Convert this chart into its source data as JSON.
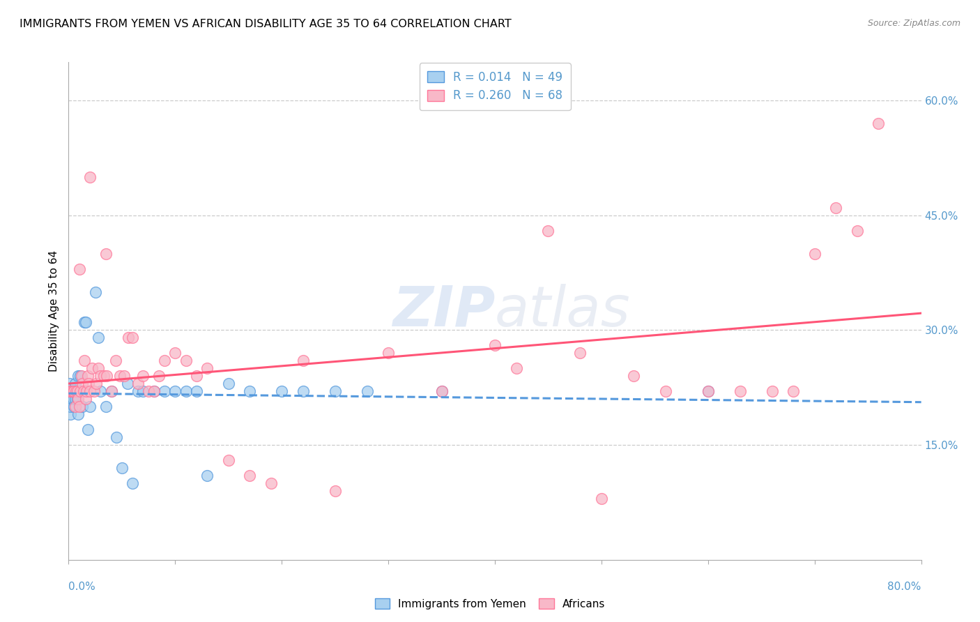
{
  "title": "IMMIGRANTS FROM YEMEN VS AFRICAN DISABILITY AGE 35 TO 64 CORRELATION CHART",
  "source": "Source: ZipAtlas.com",
  "ylabel": "Disability Age 35 to 64",
  "ylabel_right_ticks": [
    "60.0%",
    "45.0%",
    "30.0%",
    "15.0%"
  ],
  "ylabel_right_vals": [
    0.6,
    0.45,
    0.3,
    0.15
  ],
  "watermark_zip": "ZIP",
  "watermark_atlas": "atlas",
  "legend_r1": "R = 0.014",
  "legend_n1": "N = 49",
  "legend_r2": "R = 0.260",
  "legend_n2": "N = 68",
  "series1_face_color": "#A8D0F0",
  "series2_face_color": "#F8B8C8",
  "series1_edge_color": "#5599DD",
  "series2_edge_color": "#FF7799",
  "line1_color": "#5599DD",
  "line2_color": "#FF5577",
  "xlim": [
    0.0,
    0.8
  ],
  "ylim": [
    0.0,
    0.65
  ],
  "series1_x": [
    0.001,
    0.002,
    0.002,
    0.003,
    0.003,
    0.004,
    0.005,
    0.005,
    0.006,
    0.006,
    0.007,
    0.007,
    0.008,
    0.008,
    0.009,
    0.009,
    0.01,
    0.011,
    0.012,
    0.013,
    0.015,
    0.016,
    0.018,
    0.02,
    0.025,
    0.028,
    0.03,
    0.035,
    0.04,
    0.045,
    0.05,
    0.055,
    0.06,
    0.065,
    0.07,
    0.08,
    0.09,
    0.1,
    0.11,
    0.12,
    0.13,
    0.15,
    0.17,
    0.2,
    0.22,
    0.25,
    0.28,
    0.35,
    0.6
  ],
  "series1_y": [
    0.23,
    0.19,
    0.2,
    0.22,
    0.21,
    0.21,
    0.2,
    0.22,
    0.21,
    0.23,
    0.22,
    0.22,
    0.21,
    0.22,
    0.19,
    0.24,
    0.22,
    0.24,
    0.22,
    0.2,
    0.31,
    0.31,
    0.17,
    0.2,
    0.35,
    0.29,
    0.22,
    0.2,
    0.22,
    0.16,
    0.12,
    0.23,
    0.1,
    0.22,
    0.22,
    0.22,
    0.22,
    0.22,
    0.22,
    0.22,
    0.11,
    0.23,
    0.22,
    0.22,
    0.22,
    0.22,
    0.22,
    0.22,
    0.22
  ],
  "series2_x": [
    0.001,
    0.002,
    0.003,
    0.004,
    0.005,
    0.006,
    0.007,
    0.008,
    0.009,
    0.01,
    0.011,
    0.012,
    0.013,
    0.014,
    0.015,
    0.016,
    0.017,
    0.018,
    0.019,
    0.02,
    0.022,
    0.024,
    0.026,
    0.028,
    0.03,
    0.033,
    0.036,
    0.04,
    0.044,
    0.048,
    0.052,
    0.056,
    0.06,
    0.065,
    0.07,
    0.075,
    0.08,
    0.085,
    0.09,
    0.1,
    0.11,
    0.12,
    0.13,
    0.15,
    0.17,
    0.19,
    0.22,
    0.25,
    0.3,
    0.35,
    0.4,
    0.42,
    0.45,
    0.48,
    0.5,
    0.53,
    0.56,
    0.6,
    0.63,
    0.66,
    0.68,
    0.7,
    0.72,
    0.74,
    0.76,
    0.01,
    0.02,
    0.035
  ],
  "series2_y": [
    0.22,
    0.22,
    0.22,
    0.22,
    0.22,
    0.2,
    0.22,
    0.22,
    0.21,
    0.2,
    0.22,
    0.24,
    0.23,
    0.22,
    0.26,
    0.21,
    0.22,
    0.24,
    0.23,
    0.22,
    0.25,
    0.22,
    0.23,
    0.25,
    0.24,
    0.24,
    0.24,
    0.22,
    0.26,
    0.24,
    0.24,
    0.29,
    0.29,
    0.23,
    0.24,
    0.22,
    0.22,
    0.24,
    0.26,
    0.27,
    0.26,
    0.24,
    0.25,
    0.13,
    0.11,
    0.1,
    0.26,
    0.09,
    0.27,
    0.22,
    0.28,
    0.25,
    0.43,
    0.27,
    0.08,
    0.24,
    0.22,
    0.22,
    0.22,
    0.22,
    0.22,
    0.4,
    0.46,
    0.43,
    0.57,
    0.38,
    0.5,
    0.4
  ]
}
